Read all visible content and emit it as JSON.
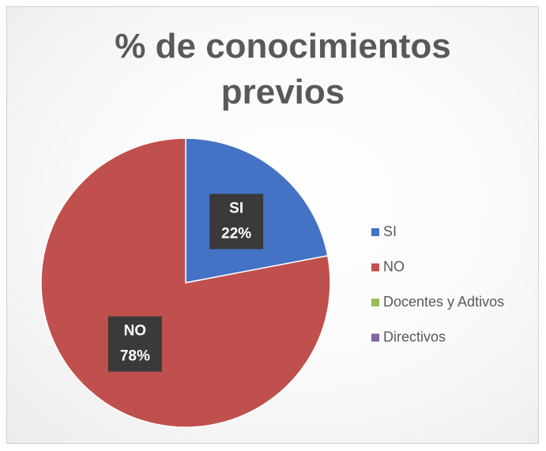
{
  "chart_data": {
    "type": "pie",
    "title": "% de conocimientos previos",
    "categories": [
      "SI",
      "NO",
      "Docentes y Adtivos",
      "Directivos"
    ],
    "values": [
      22,
      78,
      0,
      0
    ],
    "value_labels": [
      "22%",
      "78%",
      null,
      null
    ],
    "colors": [
      "#4472c4",
      "#c0504d",
      "#9bbb59",
      "#8064a2"
    ],
    "legend": "right"
  }
}
